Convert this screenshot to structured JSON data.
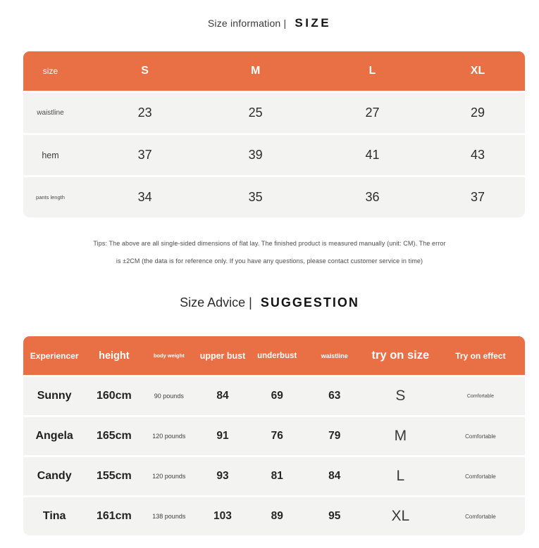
{
  "colors": {
    "accent_orange": "#E96F44",
    "row_gray": "#F3F3F1"
  },
  "size_info": {
    "title": "Size information |",
    "title_en": "SIZE",
    "table": {
      "columns": [
        "size",
        "S",
        "M",
        "L",
        "XL"
      ],
      "rows": [
        {
          "label": "waistline",
          "values": [
            "23",
            "25",
            "27",
            "29"
          ]
        },
        {
          "label": "hem",
          "values": [
            "37",
            "39",
            "41",
            "43"
          ]
        },
        {
          "label": "pants length",
          "values": [
            "34",
            "35",
            "36",
            "37"
          ]
        }
      ]
    },
    "tips_line1": "Tips: The above are all single-sided dimensions of flat lay. The finished product is measured manually (unit: CM). The error",
    "tips_line2": "is ±2CM (the data is for reference only. If you have any questions, please contact customer service in time)"
  },
  "size_advice": {
    "title": "Size Advice |",
    "title_en": "SUGGESTION",
    "table": {
      "columns": [
        "Experiencer",
        "height",
        "body weight",
        "upper bust",
        "underbust",
        "waistline",
        "try on size",
        "Try on effect"
      ],
      "rows": [
        {
          "name": "Sunny",
          "height": "160cm",
          "weight": "90 pounds",
          "upper_bust": "84",
          "underbust": "69",
          "waistline": "63",
          "try_on_size": "S",
          "effect": "Comfortable"
        },
        {
          "name": "Angela",
          "height": "165cm",
          "weight": "120 pounds",
          "upper_bust": "91",
          "underbust": "76",
          "waistline": "79",
          "try_on_size": "M",
          "effect": "Comfortable"
        },
        {
          "name": "Candy",
          "height": "155cm",
          "weight": "120 pounds",
          "upper_bust": "93",
          "underbust": "81",
          "waistline": "84",
          "try_on_size": "L",
          "effect": "Comfortable"
        },
        {
          "name": "Tina",
          "height": "161cm",
          "weight": "138 pounds",
          "upper_bust": "103",
          "underbust": "89",
          "waistline": "95",
          "try_on_size": "XL",
          "effect": "Comfortable"
        }
      ]
    }
  }
}
